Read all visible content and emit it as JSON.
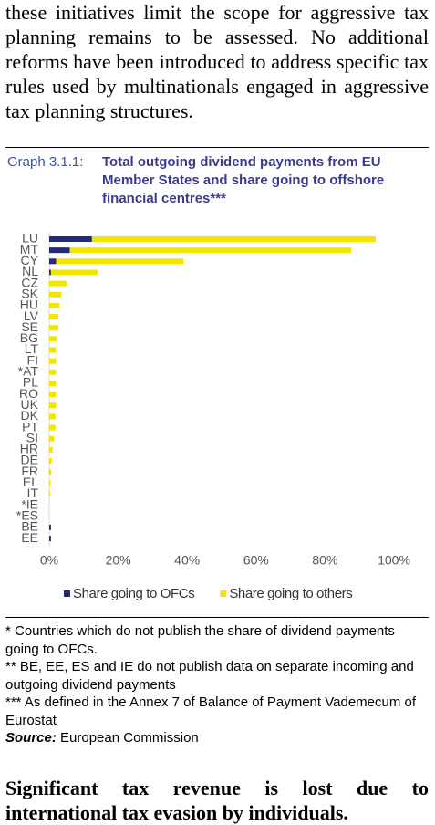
{
  "top_paragraph": "these initiatives limit the scope for aggressive tax planning remains to be assessed. No additional reforms have been introduced to address specific tax rules used by multinationals engaged in aggressive tax planning structures.",
  "graph_label": "Graph 3.1.1:",
  "chart_data": {
    "type": "stacked-barh",
    "title": "Total outgoing dividend payments from EU Member States and share going to offshore financial centres***",
    "categories": [
      "LU",
      "MT",
      "CY",
      "NL",
      "CZ",
      "SK",
      "HU",
      "LV",
      "SE",
      "BG",
      "LT",
      "FI",
      "*AT",
      "PL",
      "RO",
      "UK",
      "DK",
      "PT",
      "SI",
      "HR",
      "DE",
      "FR",
      "EL",
      "IT",
      "*IE",
      "*ES",
      "BE",
      "EE"
    ],
    "series": [
      {
        "name": "Share going to OFCs",
        "color": "#232a7a",
        "values": [
          12.4,
          6,
          2,
          0.5,
          0,
          0,
          0,
          0,
          0,
          0,
          0,
          0,
          0,
          0,
          0,
          0,
          0,
          0,
          0,
          0,
          0,
          0,
          0,
          0,
          null,
          null,
          0.5,
          0.5
        ]
      },
      {
        "name": "Share going to others",
        "color": "#f2e600",
        "values": [
          82.3,
          81.6,
          37,
          13.5,
          5,
          3.5,
          3,
          2.7,
          2.7,
          2.2,
          2,
          2,
          2,
          2,
          2,
          2,
          1.8,
          1.8,
          1.4,
          1,
          0.7,
          0.6,
          0.4,
          0.3,
          null,
          null,
          null,
          null
        ]
      }
    ],
    "xlim": [
      0,
      100
    ],
    "xticks": [
      {
        "value": 0,
        "label": "0%"
      },
      {
        "value": 20,
        "label": "20%"
      },
      {
        "value": 40,
        "label": "40%"
      },
      {
        "value": 60,
        "label": "60%"
      },
      {
        "value": 80,
        "label": "80%"
      },
      {
        "value": 100,
        "label": "100%"
      }
    ],
    "legend": "bottom"
  },
  "notes": [
    "* Countries which do not publish the share of dividend payments going to OFCs.",
    "** BE, EE, ES and IE do not publish data on separate incoming and outgoing dividend payments",
    "*** As defined in the Annex 7 of Balance of Payment Vademecum of Eurostat"
  ],
  "source": {
    "label": "Source:",
    "text": "European Commission"
  },
  "bottom_paragraph": "Significant tax revenue is lost due to international tax evasion by individuals."
}
